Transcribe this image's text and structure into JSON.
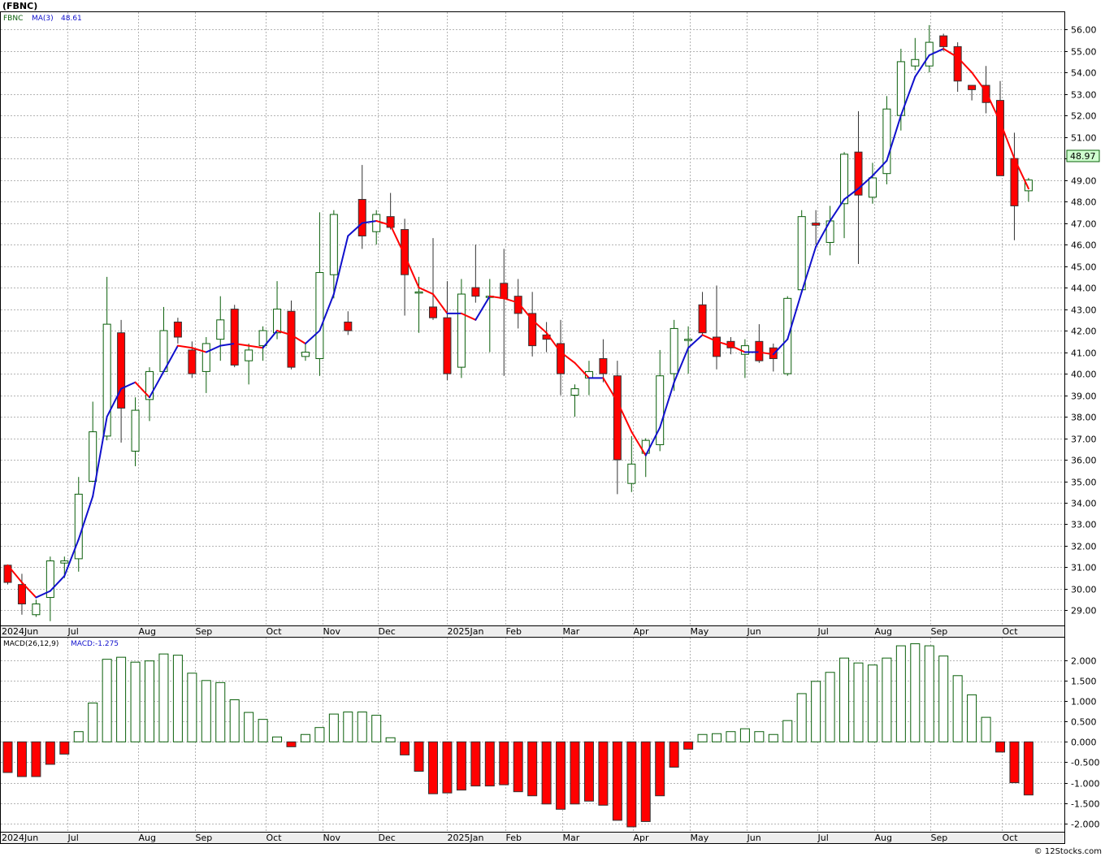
{
  "header": {
    "title": "(FBNC)",
    "ticker": "FBNC",
    "ma_label": "MA(3)",
    "ma_value": "48.61",
    "last_price": "48.97",
    "macd_label": "MACD(26,12,9)",
    "macd_value": "MACD:-1.275",
    "watermark": "© 12Stocks.com"
  },
  "colors": {
    "up": "#0a5f0a",
    "down": "#ff0000",
    "ma_up": "#1010cc",
    "ma_down": "#ff0000",
    "grid": "#b4b4b4",
    "axis_band": "#eeeeee",
    "price_box": "#cfffcf"
  },
  "chart_data": [
    {
      "type": "candlestick",
      "title": "(FBNC)",
      "ylim": [
        28.3,
        56.8
      ],
      "y_ticks": [
        "56.00",
        "55.00",
        "54.00",
        "53.00",
        "52.00",
        "51.00",
        "50.00",
        "49.00",
        "48.00",
        "47.00",
        "46.00",
        "45.00",
        "44.00",
        "43.00",
        "42.00",
        "41.00",
        "40.00",
        "39.00",
        "38.00",
        "37.00",
        "36.00",
        "35.00",
        "34.00",
        "33.00",
        "32.00",
        "31.00",
        "30.00",
        "29.00"
      ],
      "x_labels": [
        {
          "label": "2024Jun",
          "index": -0.7
        },
        {
          "label": "Jul",
          "index": 4.2
        },
        {
          "label": "Aug",
          "index": 9.2
        },
        {
          "label": "Sep",
          "index": 13.2
        },
        {
          "label": "Oct",
          "index": 18.2
        },
        {
          "label": "Nov",
          "index": 22.2
        },
        {
          "label": "Dec",
          "index": 26.1
        },
        {
          "label": "2025Jan",
          "index": 31.0
        },
        {
          "label": "Feb",
          "index": 35.1
        },
        {
          "label": "Mar",
          "index": 39.1
        },
        {
          "label": "Apr",
          "index": 44.1
        },
        {
          "label": "May",
          "index": 48.1
        },
        {
          "label": "Jun",
          "index": 52.1
        },
        {
          "label": "Jul",
          "index": 57.1
        },
        {
          "label": "Aug",
          "index": 61.1
        },
        {
          "label": "Sep",
          "index": 65.1
        },
        {
          "label": "Oct",
          "index": 70.1
        }
      ],
      "ohlc": [
        [
          31.1,
          31.1,
          30.2,
          30.3
        ],
        [
          30.2,
          30.7,
          28.8,
          29.3
        ],
        [
          28.8,
          29.5,
          28.7,
          29.3
        ],
        [
          29.6,
          31.5,
          28.5,
          31.3
        ],
        [
          31.2,
          31.5,
          30.5,
          31.3
        ],
        [
          31.4,
          35.2,
          30.8,
          34.4
        ],
        [
          35.0,
          38.7,
          35.0,
          37.3
        ],
        [
          37.1,
          44.5,
          36.9,
          42.3
        ],
        [
          41.9,
          42.5,
          36.8,
          38.4
        ],
        [
          36.4,
          38.9,
          35.7,
          38.3
        ],
        [
          38.8,
          40.3,
          37.8,
          40.1
        ],
        [
          40.1,
          43.1,
          40.1,
          42.0
        ],
        [
          42.4,
          42.6,
          41.4,
          41.7
        ],
        [
          41.1,
          41.5,
          39.8,
          40.0
        ],
        [
          40.1,
          41.7,
          39.1,
          41.4
        ],
        [
          41.6,
          43.6,
          40.6,
          42.5
        ],
        [
          43.0,
          43.2,
          40.3,
          40.4
        ],
        [
          40.6,
          41.4,
          39.5,
          41.1
        ],
        [
          41.3,
          42.2,
          40.6,
          42.0
        ],
        [
          41.9,
          44.3,
          41.6,
          43.0
        ],
        [
          42.9,
          43.4,
          40.2,
          40.3
        ],
        [
          40.8,
          41.4,
          40.6,
          41.0
        ],
        [
          40.7,
          47.5,
          39.9,
          44.7
        ],
        [
          44.6,
          47.6,
          43.5,
          47.4
        ],
        [
          42.4,
          42.9,
          41.8,
          42.0
        ],
        [
          48.1,
          49.7,
          45.8,
          46.4
        ],
        [
          46.6,
          47.6,
          46.0,
          47.4
        ],
        [
          47.3,
          48.4,
          46.7,
          46.8
        ],
        [
          46.7,
          47.2,
          42.7,
          44.6
        ],
        [
          43.8,
          44.5,
          41.9,
          43.8
        ],
        [
          43.1,
          46.3,
          42.5,
          42.6
        ],
        [
          42.6,
          44.3,
          39.7,
          40.0
        ],
        [
          40.3,
          44.4,
          39.8,
          43.7
        ],
        [
          44.0,
          46.0,
          43.3,
          43.6
        ],
        [
          43.6,
          44.4,
          41.0,
          43.6
        ],
        [
          44.2,
          45.8,
          39.9,
          43.5
        ],
        [
          43.6,
          44.4,
          42.1,
          42.8
        ],
        [
          42.8,
          43.8,
          40.8,
          41.3
        ],
        [
          41.8,
          42.4,
          41.0,
          41.6
        ],
        [
          41.4,
          42.5,
          39.0,
          40.0
        ],
        [
          39.0,
          39.5,
          38.0,
          39.3
        ],
        [
          39.8,
          40.6,
          39.0,
          40.1
        ],
        [
          40.7,
          41.6,
          39.6,
          40.0
        ],
        [
          39.9,
          40.6,
          34.4,
          36.0
        ],
        [
          34.9,
          37.1,
          34.5,
          35.8
        ],
        [
          36.3,
          37.0,
          35.2,
          36.9
        ],
        [
          36.7,
          41.1,
          36.4,
          39.9
        ],
        [
          40.0,
          42.5,
          39.2,
          42.1
        ],
        [
          41.6,
          42.2,
          40.0,
          41.6
        ],
        [
          43.2,
          43.8,
          41.8,
          41.9
        ],
        [
          41.7,
          44.1,
          40.2,
          40.8
        ],
        [
          41.5,
          41.7,
          40.9,
          41.2
        ],
        [
          40.9,
          41.6,
          39.8,
          41.3
        ],
        [
          41.5,
          42.3,
          40.5,
          40.6
        ],
        [
          41.2,
          41.4,
          40.1,
          40.7
        ],
        [
          40.0,
          43.6,
          39.9,
          43.5
        ],
        [
          43.9,
          47.6,
          43.8,
          47.3
        ],
        [
          47.0,
          47.6,
          46.0,
          46.9
        ],
        [
          46.1,
          47.8,
          45.5,
          47.1
        ],
        [
          47.9,
          50.3,
          46.3,
          50.2
        ],
        [
          50.3,
          52.2,
          45.1,
          48.3
        ],
        [
          48.2,
          49.8,
          47.9,
          49.1
        ],
        [
          49.3,
          52.9,
          48.8,
          52.3
        ],
        [
          52.0,
          55.1,
          51.3,
          54.5
        ],
        [
          54.3,
          55.6,
          54.1,
          54.6
        ],
        [
          54.3,
          56.2,
          54.0,
          55.4
        ],
        [
          55.7,
          55.8,
          55.0,
          55.2
        ],
        [
          55.2,
          55.4,
          53.1,
          53.6
        ],
        [
          53.4,
          53.4,
          52.7,
          53.2
        ],
        [
          53.4,
          54.3,
          52.1,
          52.6
        ],
        [
          52.7,
          53.6,
          49.2,
          49.2
        ],
        [
          50.0,
          51.2,
          46.2,
          47.8
        ],
        [
          48.5,
          49.1,
          48.0,
          49.0
        ]
      ],
      "ma3": [
        31.1,
        30.3,
        29.6,
        29.9,
        30.6,
        32.3,
        34.3,
        38.0,
        39.3,
        39.6,
        38.9,
        40.1,
        41.3,
        41.2,
        41.0,
        41.3,
        41.4,
        41.3,
        41.2,
        42.0,
        41.8,
        41.4,
        42.0,
        43.7,
        46.4,
        47.0,
        47.1,
        46.9,
        45.5,
        44.0,
        43.7,
        42.8,
        42.8,
        42.5,
        43.6,
        43.5,
        43.3,
        42.5,
        41.9,
        41.0,
        40.5,
        39.8,
        39.8,
        38.7,
        37.3,
        36.2,
        37.5,
        39.6,
        41.2,
        41.8,
        41.5,
        41.3,
        41.0,
        41.0,
        40.9,
        41.6,
        43.8,
        45.9,
        47.1,
        48.1,
        48.6,
        49.2,
        49.9,
        52.0,
        53.8,
        54.8,
        55.1,
        54.7,
        54.0,
        53.1,
        51.7,
        50.0,
        48.6
      ]
    },
    {
      "type": "bar",
      "title": "MACD(26,12,9)",
      "ylim": [
        -2.2,
        2.55
      ],
      "y_ticks": [
        "2.000",
        "1.500",
        "1.000",
        "0.500",
        "0.000",
        "-0.500",
        "-1.000",
        "-1.500",
        "-2.000"
      ],
      "values": [
        -0.75,
        -0.85,
        -0.85,
        -0.55,
        -0.3,
        0.25,
        0.95,
        2.02,
        2.07,
        1.95,
        1.98,
        2.15,
        2.12,
        1.68,
        1.5,
        1.45,
        1.03,
        0.72,
        0.55,
        0.12,
        -0.12,
        0.18,
        0.35,
        0.68,
        0.73,
        0.73,
        0.65,
        0.1,
        -0.32,
        -0.72,
        -1.27,
        -1.25,
        -1.18,
        -1.08,
        -1.08,
        -1.05,
        -1.22,
        -1.32,
        -1.52,
        -1.65,
        -1.52,
        -1.45,
        -1.55,
        -1.92,
        -2.08,
        -1.95,
        -1.32,
        -0.62,
        -0.18,
        0.18,
        0.2,
        0.25,
        0.32,
        0.25,
        0.18,
        0.52,
        1.18,
        1.48,
        1.7,
        2.05,
        1.93,
        1.88,
        2.05,
        2.35,
        2.4,
        2.35,
        2.1,
        1.62,
        1.15,
        0.6,
        -0.25,
        -1.0,
        -1.3
      ]
    }
  ]
}
